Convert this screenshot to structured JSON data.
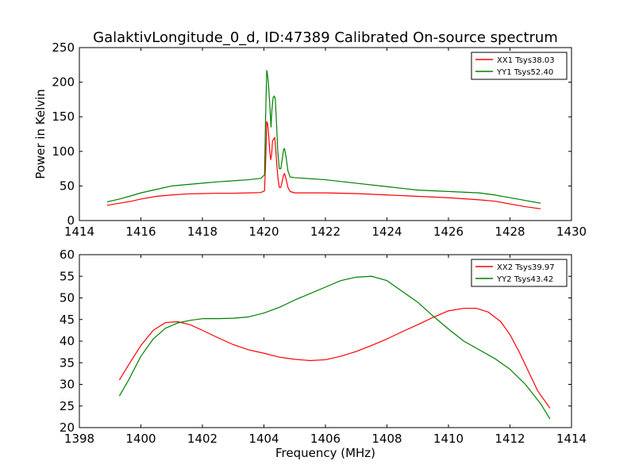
{
  "figure": {
    "title": "GalaktivLongitude_0_d, ID:47389 Calibrated On-source spectrum"
  },
  "chart_data": [
    {
      "type": "line",
      "ylabel": "Power in Kelvin",
      "xlabel": "",
      "xlim": [
        1414,
        1430
      ],
      "ylim": [
        0,
        250
      ],
      "xticks": [
        1414,
        1416,
        1418,
        1420,
        1422,
        1424,
        1426,
        1428,
        1430
      ],
      "yticks": [
        0,
        50,
        100,
        150,
        200,
        250
      ],
      "legend_position": "top-right",
      "grid": false,
      "series": [
        {
          "name": "XX1 Tsys38.03",
          "color": "#ff0000",
          "points": [
            [
              1414.9,
              22
            ],
            [
              1415.3,
              25
            ],
            [
              1415.7,
              28
            ],
            [
              1416.0,
              31
            ],
            [
              1416.5,
              35
            ],
            [
              1417.0,
              37
            ],
            [
              1417.5,
              38.5
            ],
            [
              1418.0,
              39
            ],
            [
              1418.5,
              39.5
            ],
            [
              1419.0,
              39.5
            ],
            [
              1419.5,
              40
            ],
            [
              1419.9,
              40.5
            ],
            [
              1420.02,
              43
            ],
            [
              1420.06,
              90
            ],
            [
              1420.09,
              143
            ],
            [
              1420.12,
              140
            ],
            [
              1420.16,
              120
            ],
            [
              1420.19,
              100
            ],
            [
              1420.22,
              88
            ],
            [
              1420.25,
              95
            ],
            [
              1420.28,
              115
            ],
            [
              1420.32,
              118
            ],
            [
              1420.35,
              120
            ],
            [
              1420.38,
              105
            ],
            [
              1420.42,
              80
            ],
            [
              1420.46,
              60
            ],
            [
              1420.5,
              48
            ],
            [
              1420.55,
              48
            ],
            [
              1420.6,
              58
            ],
            [
              1420.64,
              66
            ],
            [
              1420.67,
              68
            ],
            [
              1420.72,
              60
            ],
            [
              1420.78,
              48
            ],
            [
              1420.85,
              42
            ],
            [
              1421.0,
              40
            ],
            [
              1422.0,
              40
            ],
            [
              1423.0,
              39
            ],
            [
              1424.0,
              37
            ],
            [
              1425.0,
              35
            ],
            [
              1426.0,
              33
            ],
            [
              1427.0,
              30
            ],
            [
              1427.5,
              28
            ],
            [
              1428.0,
              24
            ],
            [
              1428.5,
              20
            ],
            [
              1429.0,
              17
            ]
          ]
        },
        {
          "name": "YY1 Tsys52.40",
          "color": "#008000",
          "points": [
            [
              1414.9,
              27
            ],
            [
              1415.3,
              31
            ],
            [
              1415.7,
              36
            ],
            [
              1416.0,
              40
            ],
            [
              1416.5,
              45
            ],
            [
              1417.0,
              50
            ],
            [
              1417.5,
              52
            ],
            [
              1418.0,
              54
            ],
            [
              1418.5,
              56
            ],
            [
              1419.0,
              57.5
            ],
            [
              1419.5,
              59
            ],
            [
              1419.9,
              61
            ],
            [
              1420.02,
              66
            ],
            [
              1420.05,
              140
            ],
            [
              1420.09,
              217
            ],
            [
              1420.12,
              210
            ],
            [
              1420.16,
              190
            ],
            [
              1420.2,
              160
            ],
            [
              1420.23,
              135
            ],
            [
              1420.26,
              160
            ],
            [
              1420.3,
              178
            ],
            [
              1420.34,
              180
            ],
            [
              1420.37,
              175
            ],
            [
              1420.41,
              140
            ],
            [
              1420.45,
              100
            ],
            [
              1420.5,
              75
            ],
            [
              1420.55,
              75
            ],
            [
              1420.6,
              90
            ],
            [
              1420.64,
              103
            ],
            [
              1420.67,
              104
            ],
            [
              1420.72,
              92
            ],
            [
              1420.78,
              72
            ],
            [
              1420.85,
              63
            ],
            [
              1421.0,
              62
            ],
            [
              1422.0,
              59
            ],
            [
              1423.0,
              54
            ],
            [
              1424.0,
              49
            ],
            [
              1425.0,
              44
            ],
            [
              1426.0,
              42
            ],
            [
              1427.0,
              40
            ],
            [
              1427.5,
              37
            ],
            [
              1428.0,
              33
            ],
            [
              1428.5,
              29
            ],
            [
              1429.0,
              25
            ]
          ]
        }
      ]
    },
    {
      "type": "line",
      "ylabel": "",
      "xlabel": "Frequency (MHz)",
      "xlim": [
        1398,
        1414
      ],
      "ylim": [
        20,
        60
      ],
      "xticks": [
        1398,
        1400,
        1402,
        1404,
        1406,
        1408,
        1410,
        1412,
        1414
      ],
      "yticks": [
        20,
        25,
        30,
        35,
        40,
        45,
        50,
        55,
        60
      ],
      "legend_position": "top-right",
      "grid": false,
      "series": [
        {
          "name": "XX2 Tsys39.97",
          "color": "#ff0000",
          "points": [
            [
              1399.3,
              31
            ],
            [
              1399.6,
              34.5
            ],
            [
              1400.0,
              39
            ],
            [
              1400.4,
              42.5
            ],
            [
              1400.8,
              44.3
            ],
            [
              1401.2,
              44.5
            ],
            [
              1401.6,
              43.8
            ],
            [
              1402.0,
              42.5
            ],
            [
              1402.5,
              40.8
            ],
            [
              1403.0,
              39.2
            ],
            [
              1403.5,
              38
            ],
            [
              1404.0,
              37.2
            ],
            [
              1404.5,
              36.3
            ],
            [
              1405.0,
              35.8
            ],
            [
              1405.5,
              35.5
            ],
            [
              1406.0,
              35.7
            ],
            [
              1406.5,
              36.5
            ],
            [
              1407.0,
              37.6
            ],
            [
              1407.5,
              39
            ],
            [
              1408.0,
              40.5
            ],
            [
              1408.5,
              42.2
            ],
            [
              1409.0,
              43.8
            ],
            [
              1409.5,
              45.5
            ],
            [
              1410.0,
              47
            ],
            [
              1410.5,
              47.6
            ],
            [
              1410.9,
              47.6
            ],
            [
              1411.3,
              46.7
            ],
            [
              1411.7,
              44.5
            ],
            [
              1412.0,
              41.5
            ],
            [
              1412.3,
              37.5
            ],
            [
              1412.6,
              33
            ],
            [
              1412.9,
              28.5
            ],
            [
              1413.3,
              24.5
            ]
          ]
        },
        {
          "name": "YY2 Tsys43.42",
          "color": "#008000",
          "points": [
            [
              1399.3,
              27.3
            ],
            [
              1399.6,
              31
            ],
            [
              1400.0,
              36.5
            ],
            [
              1400.4,
              40.5
            ],
            [
              1400.8,
              43
            ],
            [
              1401.2,
              44.2
            ],
            [
              1401.6,
              44.8
            ],
            [
              1402.0,
              45.2
            ],
            [
              1402.5,
              45.2
            ],
            [
              1403.0,
              45.3
            ],
            [
              1403.5,
              45.6
            ],
            [
              1404.0,
              46.5
            ],
            [
              1404.5,
              47.8
            ],
            [
              1405.0,
              49.5
            ],
            [
              1405.5,
              51
            ],
            [
              1406.0,
              52.5
            ],
            [
              1406.5,
              54
            ],
            [
              1407.0,
              54.8
            ],
            [
              1407.5,
              55
            ],
            [
              1408.0,
              54
            ],
            [
              1408.5,
              51.5
            ],
            [
              1409.0,
              49
            ],
            [
              1409.5,
              45.8
            ],
            [
              1410.0,
              42.8
            ],
            [
              1410.5,
              40
            ],
            [
              1411.0,
              38
            ],
            [
              1411.5,
              36
            ],
            [
              1412.0,
              33.5
            ],
            [
              1412.5,
              30
            ],
            [
              1413.0,
              25.5
            ],
            [
              1413.3,
              22
            ]
          ]
        }
      ]
    }
  ]
}
